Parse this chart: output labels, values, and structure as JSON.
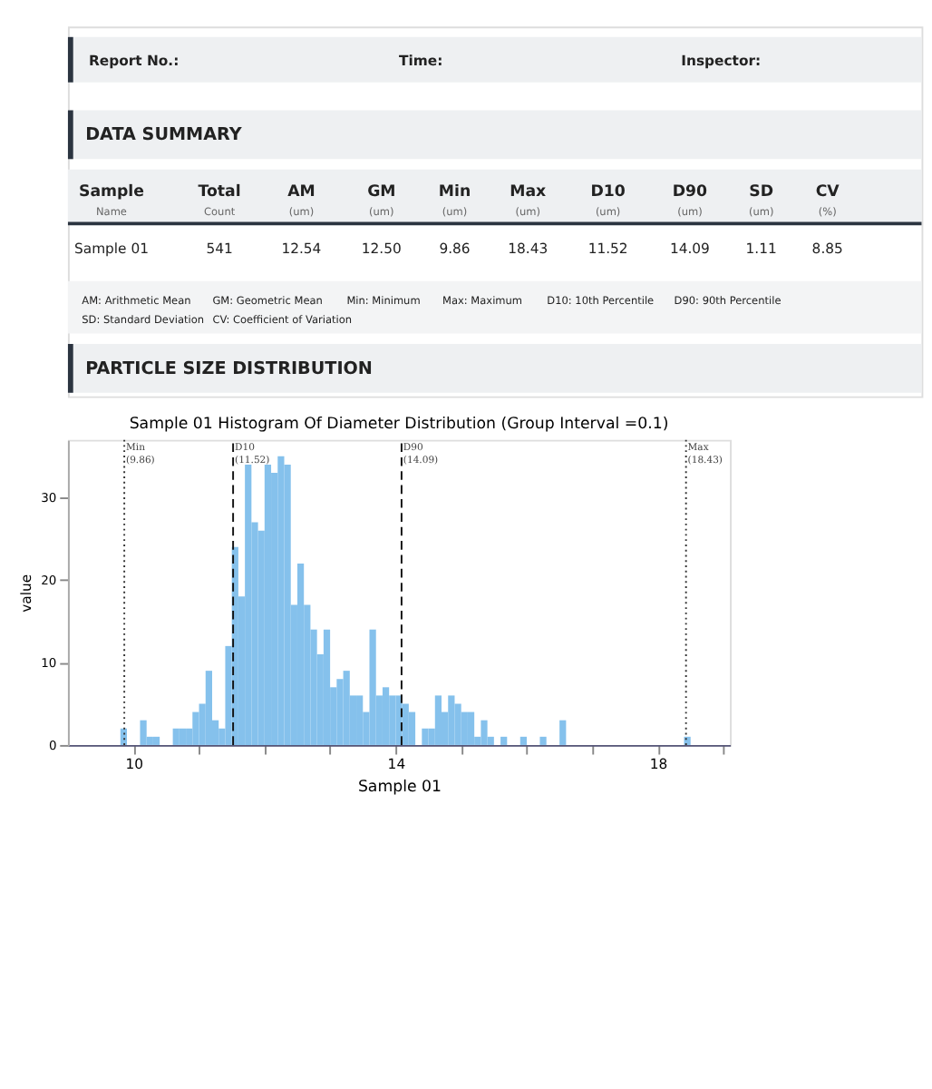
{
  "chart_data": [
    {
      "type": "other",
      "annotations": [
        "Report No.:",
        "Time:",
        "Inspector:",
        "DATA SUMMARY",
        "Sample",
        "Total",
        "AM",
        "GM",
        "Min",
        "Max",
        "D10",
        "D90",
        "SD",
        "CV",
        "Name",
        "Count",
        "(um)",
        "(um)",
        "(um)",
        "(um)",
        "(um)",
        "(um)",
        "(um)",
        "(%)",
        "Sample 01",
        "541",
        "12.54",
        "12.50",
        "9.86",
        "18.43",
        "11.52",
        "14.09",
        "1.11",
        "8.85",
        "AM: Arithmetic Mean",
        "GM: Geometric Mean",
        "Min: Minimum",
        "Max: Maximum",
        "D10: 10th Percentile",
        "D90: 90th Percentile",
        "SD: Standard Deviation",
        "CV: Coefficient of Variation",
        "PARTICLE SIZE DISTRIBUTION"
      ]
    },
    {
      "type": "histogram",
      "title": "Sample 01 Histogram Of Diameter Distribution (Group Interval =0.1)",
      "xlabel": "Sample 01",
      "ylabel": "value",
      "color": "#85c1ec",
      "bins": [
        9.8,
        9.9,
        10.0,
        10.1,
        10.2,
        10.3,
        10.4,
        10.5,
        10.6,
        10.7,
        10.8,
        10.9,
        11.0,
        11.1,
        11.2,
        11.3,
        11.4,
        11.5,
        11.6,
        11.7,
        11.8,
        11.9,
        12.0,
        12.1,
        12.2,
        12.3,
        12.4,
        12.5,
        12.6,
        12.7,
        12.8,
        12.9,
        13.0,
        13.1,
        13.2,
        13.3,
        13.4,
        13.5,
        13.6,
        13.7,
        13.8,
        13.9,
        14.0,
        14.1,
        14.2,
        14.3,
        14.4,
        14.5,
        14.6,
        14.7,
        14.8,
        14.9,
        15.0,
        15.1,
        15.2,
        15.3,
        15.4,
        15.5,
        15.6,
        15.7,
        15.8,
        15.9,
        16.0,
        16.1,
        16.2,
        16.3,
        16.4,
        16.5,
        16.6,
        16.7,
        16.8,
        16.9,
        17.0,
        17.1,
        17.2,
        17.3,
        17.4,
        17.5,
        17.6,
        17.7,
        17.8,
        17.9,
        18.0,
        18.1,
        18.2,
        18.3,
        18.4,
        18.5
      ],
      "values": [
        2,
        0,
        0,
        3,
        1,
        1,
        0,
        0,
        2,
        2,
        2,
        4,
        5,
        9,
        3,
        2,
        12,
        24,
        18,
        34,
        27,
        26,
        34,
        33,
        35,
        34,
        17,
        22,
        17,
        14,
        11,
        14,
        7,
        8,
        9,
        6,
        6,
        4,
        14,
        6,
        7,
        6,
        6,
        5,
        4,
        0,
        2,
        2,
        6,
        4,
        6,
        5,
        4,
        4,
        1,
        3,
        1,
        0,
        1,
        0,
        0,
        1,
        0,
        0,
        1,
        0,
        0,
        3,
        0,
        0,
        0,
        0,
        0,
        0,
        0,
        0,
        0,
        0,
        0,
        0,
        0,
        0,
        0,
        0,
        0,
        0,
        1
      ],
      "xlim": [
        9.0,
        19.1
      ],
      "xticks": [
        10,
        {
          "value": 11,
          "label": null
        },
        {
          "value": 12,
          "label": null
        },
        {
          "value": 13,
          "label": null
        },
        14,
        {
          "value": 15,
          "label": null
        },
        {
          "value": 16,
          "label": null
        },
        {
          "value": 17,
          "label": null
        },
        18,
        {
          "value": 19,
          "label": null
        }
      ],
      "ylim": [
        0,
        37
      ],
      "yticks": [
        0,
        10,
        20,
        30
      ],
      "grid": false,
      "ref_lines": [
        {
          "axis": "x",
          "value": 9.86,
          "label": "Min (9.86)",
          "line_style": "dotted",
          "color": "#333333"
        },
        {
          "axis": "x",
          "value": 11.52,
          "label": "D10 (11.52)",
          "line_style": "dashed",
          "color": "#111111"
        },
        {
          "axis": "x",
          "value": 14.09,
          "label": "D90 (14.09)",
          "line_style": "dashed",
          "color": "#111111"
        },
        {
          "axis": "x",
          "value": 18.43,
          "label": "Max (18.43)",
          "line_style": "dotted",
          "color": "#333333"
        }
      ]
    }
  ]
}
